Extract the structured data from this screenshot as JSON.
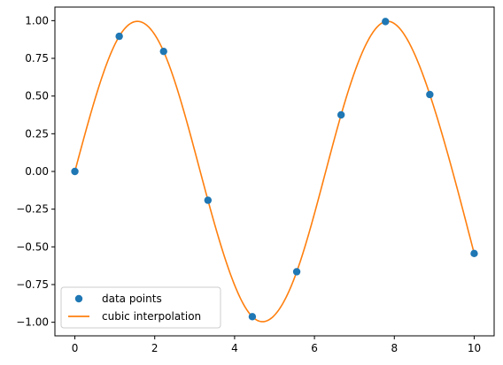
{
  "chart_data": {
    "type": "line",
    "title": "",
    "xlabel": "",
    "ylabel": "",
    "xlim": [
      -0.5,
      10.5
    ],
    "ylim": [
      -1.09,
      1.09
    ],
    "grid": false,
    "legend_position": "lower-left",
    "x_ticks": [
      0,
      2,
      4,
      6,
      8,
      10
    ],
    "x_tick_labels": [
      "0",
      "2",
      "4",
      "6",
      "8",
      "10"
    ],
    "y_ticks": [
      -1.0,
      -0.75,
      -0.5,
      -0.25,
      0.0,
      0.25,
      0.5,
      0.75,
      1.0
    ],
    "y_tick_labels": [
      "−1.00",
      "−0.75",
      "−0.50",
      "−0.25",
      "0.00",
      "0.25",
      "0.50",
      "0.75",
      "1.00"
    ],
    "series": [
      {
        "name": "data points",
        "kind": "scatter",
        "color": "#1f77b4",
        "x": [
          0.0,
          1.111,
          2.222,
          3.333,
          4.444,
          5.556,
          6.667,
          7.778,
          8.889,
          10.0
        ],
        "y": [
          0.0,
          0.896,
          0.796,
          -0.191,
          -0.963,
          -0.665,
          0.375,
          0.994,
          0.51,
          -0.544
        ]
      },
      {
        "name": "cubic interpolation",
        "kind": "line",
        "color": "#ff7f0e"
      }
    ]
  }
}
